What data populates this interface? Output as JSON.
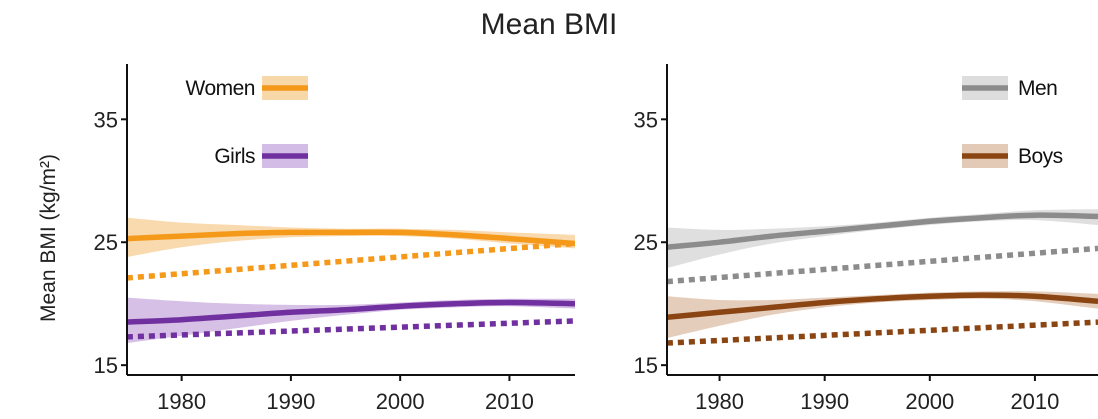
{
  "title": "Mean BMI",
  "chart_data": [
    {
      "type": "line",
      "ylabel": "Mean BMI (kg/m²)",
      "xlim": [
        1975,
        2016
      ],
      "ylim": [
        14.2,
        39.5
      ],
      "x_ticks": [
        1980,
        1990,
        2000,
        2010
      ],
      "y_ticks": [
        15,
        25,
        35
      ],
      "legend_position": "top-left",
      "series": [
        {
          "name": "Women",
          "color": "#F4991A",
          "band_color": "#F6C98C",
          "x": [
            1975,
            1980,
            1985,
            1990,
            1995,
            2000,
            2005,
            2010,
            2016
          ],
          "y": [
            25.3,
            25.5,
            25.7,
            25.8,
            25.8,
            25.8,
            25.6,
            25.3,
            24.9
          ],
          "upper": [
            27.0,
            26.6,
            26.4,
            26.2,
            26.1,
            26.1,
            26.0,
            25.8,
            25.6
          ],
          "lower": [
            23.8,
            24.6,
            25.1,
            25.4,
            25.5,
            25.5,
            25.3,
            24.9,
            24.5
          ],
          "dashed": {
            "x": [
              1975,
              2016
            ],
            "y": [
              22.1,
              24.9
            ]
          }
        },
        {
          "name": "Girls",
          "color": "#7030A0",
          "band_color": "#C4A5DC",
          "x": [
            1975,
            1980,
            1985,
            1990,
            1995,
            2000,
            2005,
            2010,
            2016
          ],
          "y": [
            18.5,
            18.7,
            19.0,
            19.3,
            19.5,
            19.8,
            20.0,
            20.1,
            20.0
          ],
          "upper": [
            20.5,
            20.2,
            20.0,
            19.9,
            19.9,
            20.1,
            20.3,
            20.4,
            20.4
          ],
          "lower": [
            16.8,
            17.4,
            18.0,
            18.6,
            19.1,
            19.5,
            19.7,
            19.8,
            19.6
          ],
          "dashed": {
            "x": [
              1975,
              2016
            ],
            "y": [
              17.3,
              18.6
            ]
          }
        }
      ]
    },
    {
      "type": "line",
      "xlim": [
        1975,
        2016
      ],
      "ylim": [
        14.2,
        39.5
      ],
      "x_ticks": [
        1980,
        1990,
        2000,
        2010
      ],
      "y_ticks": [
        15,
        25,
        35
      ],
      "legend_position": "top-right",
      "series": [
        {
          "name": "Men",
          "color": "#8C8C8C",
          "band_color": "#D2D2D2",
          "x": [
            1975,
            1980,
            1985,
            1990,
            1995,
            2000,
            2005,
            2010,
            2016
          ],
          "y": [
            24.6,
            25.0,
            25.5,
            25.9,
            26.3,
            26.7,
            27.0,
            27.2,
            27.1
          ],
          "upper": [
            26.2,
            26.0,
            26.1,
            26.3,
            26.6,
            27.0,
            27.3,
            27.6,
            27.7
          ],
          "lower": [
            22.9,
            24.0,
            24.9,
            25.5,
            26.0,
            26.4,
            26.7,
            26.8,
            26.4
          ],
          "dashed": {
            "x": [
              1975,
              2016
            ],
            "y": [
              21.8,
              24.5
            ]
          }
        },
        {
          "name": "Boys",
          "color": "#8B4513",
          "band_color": "#D8B89E",
          "x": [
            1975,
            1980,
            1985,
            1990,
            1995,
            2000,
            2005,
            2010,
            2016
          ],
          "y": [
            18.9,
            19.3,
            19.7,
            20.1,
            20.4,
            20.6,
            20.7,
            20.6,
            20.2
          ],
          "upper": [
            20.6,
            20.3,
            20.3,
            20.5,
            20.7,
            20.9,
            21.0,
            21.0,
            20.8
          ],
          "lower": [
            17.2,
            18.2,
            19.1,
            19.7,
            20.1,
            20.3,
            20.4,
            20.2,
            19.6
          ],
          "dashed": {
            "x": [
              1975,
              2016
            ],
            "y": [
              16.8,
              18.5
            ]
          }
        }
      ]
    }
  ]
}
